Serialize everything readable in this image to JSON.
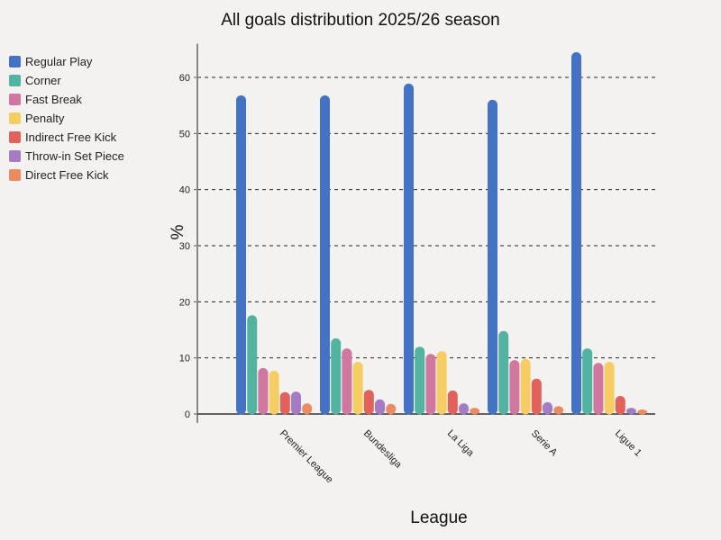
{
  "chart_data": {
    "type": "bar",
    "title": "All goals distribution 2025/26 season",
    "xlabel": "League",
    "ylabel": "%",
    "ylim": [
      0,
      66
    ],
    "yticks": [
      0,
      10,
      20,
      30,
      40,
      50,
      60
    ],
    "grid": "horizontal dashed",
    "legend_position": "left",
    "categories": [
      "Premier League",
      "Bundesliga",
      "La Liga",
      "Serie A",
      "Ligue 1"
    ],
    "series": [
      {
        "name": "Regular Play",
        "color": "#4472c4",
        "values": [
          56.8,
          56.8,
          58.9,
          56.0,
          64.5
        ]
      },
      {
        "name": "Corner",
        "color": "#52b3a0",
        "values": [
          17.6,
          13.5,
          12.0,
          14.8,
          11.7
        ]
      },
      {
        "name": "Fast Break",
        "color": "#d077a0",
        "values": [
          8.2,
          11.7,
          10.7,
          9.6,
          9.1
        ]
      },
      {
        "name": "Penalty",
        "color": "#f5cd62",
        "values": [
          7.7,
          9.3,
          11.2,
          9.8,
          9.3
        ]
      },
      {
        "name": "Indirect Free Kick",
        "color": "#e0625a",
        "values": [
          3.9,
          4.3,
          4.2,
          6.3,
          3.2
        ]
      },
      {
        "name": "Throw-in Set Piece",
        "color": "#a47cc4",
        "values": [
          4.0,
          2.6,
          1.9,
          2.1,
          1.1
        ]
      },
      {
        "name": "Direct Free Kick",
        "color": "#ec8b62",
        "values": [
          1.9,
          1.8,
          1.1,
          1.4,
          0.8
        ]
      }
    ]
  }
}
